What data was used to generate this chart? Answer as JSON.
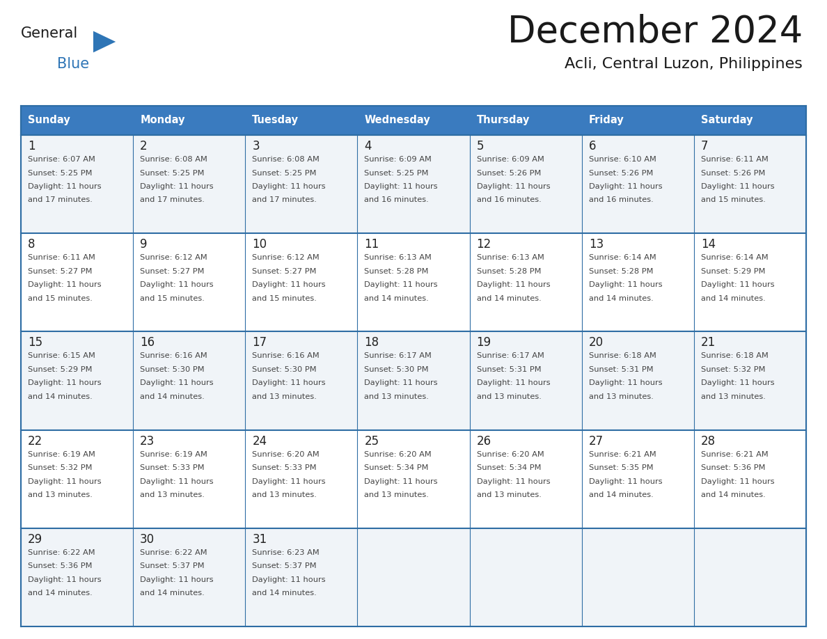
{
  "title": "December 2024",
  "subtitle": "Acli, Central Luzon, Philippines",
  "days_of_week": [
    "Sunday",
    "Monday",
    "Tuesday",
    "Wednesday",
    "Thursday",
    "Friday",
    "Saturday"
  ],
  "header_bg_color": "#3a7bbf",
  "header_text_color": "#ffffff",
  "cell_bg_light": "#f0f4f8",
  "cell_bg_white": "#ffffff",
  "border_color": "#2e6da4",
  "day_number_color": "#222222",
  "cell_text_color": "#444444",
  "title_color": "#1a1a1a",
  "subtitle_color": "#1a1a1a",
  "logo_general_color": "#1a1a1a",
  "logo_blue_color": "#2e75b6",
  "weeks": [
    {
      "days": [
        {
          "date": 1,
          "sunrise": "6:07 AM",
          "sunset": "5:25 PM",
          "daylight_h": "11 hours",
          "daylight_m": "and 17 minutes."
        },
        {
          "date": 2,
          "sunrise": "6:08 AM",
          "sunset": "5:25 PM",
          "daylight_h": "11 hours",
          "daylight_m": "and 17 minutes."
        },
        {
          "date": 3,
          "sunrise": "6:08 AM",
          "sunset": "5:25 PM",
          "daylight_h": "11 hours",
          "daylight_m": "and 17 minutes."
        },
        {
          "date": 4,
          "sunrise": "6:09 AM",
          "sunset": "5:25 PM",
          "daylight_h": "11 hours",
          "daylight_m": "and 16 minutes."
        },
        {
          "date": 5,
          "sunrise": "6:09 AM",
          "sunset": "5:26 PM",
          "daylight_h": "11 hours",
          "daylight_m": "and 16 minutes."
        },
        {
          "date": 6,
          "sunrise": "6:10 AM",
          "sunset": "5:26 PM",
          "daylight_h": "11 hours",
          "daylight_m": "and 16 minutes."
        },
        {
          "date": 7,
          "sunrise": "6:11 AM",
          "sunset": "5:26 PM",
          "daylight_h": "11 hours",
          "daylight_m": "and 15 minutes."
        }
      ]
    },
    {
      "days": [
        {
          "date": 8,
          "sunrise": "6:11 AM",
          "sunset": "5:27 PM",
          "daylight_h": "11 hours",
          "daylight_m": "and 15 minutes."
        },
        {
          "date": 9,
          "sunrise": "6:12 AM",
          "sunset": "5:27 PM",
          "daylight_h": "11 hours",
          "daylight_m": "and 15 minutes."
        },
        {
          "date": 10,
          "sunrise": "6:12 AM",
          "sunset": "5:27 PM",
          "daylight_h": "11 hours",
          "daylight_m": "and 15 minutes."
        },
        {
          "date": 11,
          "sunrise": "6:13 AM",
          "sunset": "5:28 PM",
          "daylight_h": "11 hours",
          "daylight_m": "and 14 minutes."
        },
        {
          "date": 12,
          "sunrise": "6:13 AM",
          "sunset": "5:28 PM",
          "daylight_h": "11 hours",
          "daylight_m": "and 14 minutes."
        },
        {
          "date": 13,
          "sunrise": "6:14 AM",
          "sunset": "5:28 PM",
          "daylight_h": "11 hours",
          "daylight_m": "and 14 minutes."
        },
        {
          "date": 14,
          "sunrise": "6:14 AM",
          "sunset": "5:29 PM",
          "daylight_h": "11 hours",
          "daylight_m": "and 14 minutes."
        }
      ]
    },
    {
      "days": [
        {
          "date": 15,
          "sunrise": "6:15 AM",
          "sunset": "5:29 PM",
          "daylight_h": "11 hours",
          "daylight_m": "and 14 minutes."
        },
        {
          "date": 16,
          "sunrise": "6:16 AM",
          "sunset": "5:30 PM",
          "daylight_h": "11 hours",
          "daylight_m": "and 14 minutes."
        },
        {
          "date": 17,
          "sunrise": "6:16 AM",
          "sunset": "5:30 PM",
          "daylight_h": "11 hours",
          "daylight_m": "and 13 minutes."
        },
        {
          "date": 18,
          "sunrise": "6:17 AM",
          "sunset": "5:30 PM",
          "daylight_h": "11 hours",
          "daylight_m": "and 13 minutes."
        },
        {
          "date": 19,
          "sunrise": "6:17 AM",
          "sunset": "5:31 PM",
          "daylight_h": "11 hours",
          "daylight_m": "and 13 minutes."
        },
        {
          "date": 20,
          "sunrise": "6:18 AM",
          "sunset": "5:31 PM",
          "daylight_h": "11 hours",
          "daylight_m": "and 13 minutes."
        },
        {
          "date": 21,
          "sunrise": "6:18 AM",
          "sunset": "5:32 PM",
          "daylight_h": "11 hours",
          "daylight_m": "and 13 minutes."
        }
      ]
    },
    {
      "days": [
        {
          "date": 22,
          "sunrise": "6:19 AM",
          "sunset": "5:32 PM",
          "daylight_h": "11 hours",
          "daylight_m": "and 13 minutes."
        },
        {
          "date": 23,
          "sunrise": "6:19 AM",
          "sunset": "5:33 PM",
          "daylight_h": "11 hours",
          "daylight_m": "and 13 minutes."
        },
        {
          "date": 24,
          "sunrise": "6:20 AM",
          "sunset": "5:33 PM",
          "daylight_h": "11 hours",
          "daylight_m": "and 13 minutes."
        },
        {
          "date": 25,
          "sunrise": "6:20 AM",
          "sunset": "5:34 PM",
          "daylight_h": "11 hours",
          "daylight_m": "and 13 minutes."
        },
        {
          "date": 26,
          "sunrise": "6:20 AM",
          "sunset": "5:34 PM",
          "daylight_h": "11 hours",
          "daylight_m": "and 13 minutes."
        },
        {
          "date": 27,
          "sunrise": "6:21 AM",
          "sunset": "5:35 PM",
          "daylight_h": "11 hours",
          "daylight_m": "and 14 minutes."
        },
        {
          "date": 28,
          "sunrise": "6:21 AM",
          "sunset": "5:36 PM",
          "daylight_h": "11 hours",
          "daylight_m": "and 14 minutes."
        }
      ]
    },
    {
      "days": [
        {
          "date": 29,
          "sunrise": "6:22 AM",
          "sunset": "5:36 PM",
          "daylight_h": "11 hours",
          "daylight_m": "and 14 minutes."
        },
        {
          "date": 30,
          "sunrise": "6:22 AM",
          "sunset": "5:37 PM",
          "daylight_h": "11 hours",
          "daylight_m": "and 14 minutes."
        },
        {
          "date": 31,
          "sunrise": "6:23 AM",
          "sunset": "5:37 PM",
          "daylight_h": "11 hours",
          "daylight_m": "and 14 minutes."
        },
        null,
        null,
        null,
        null
      ]
    }
  ]
}
